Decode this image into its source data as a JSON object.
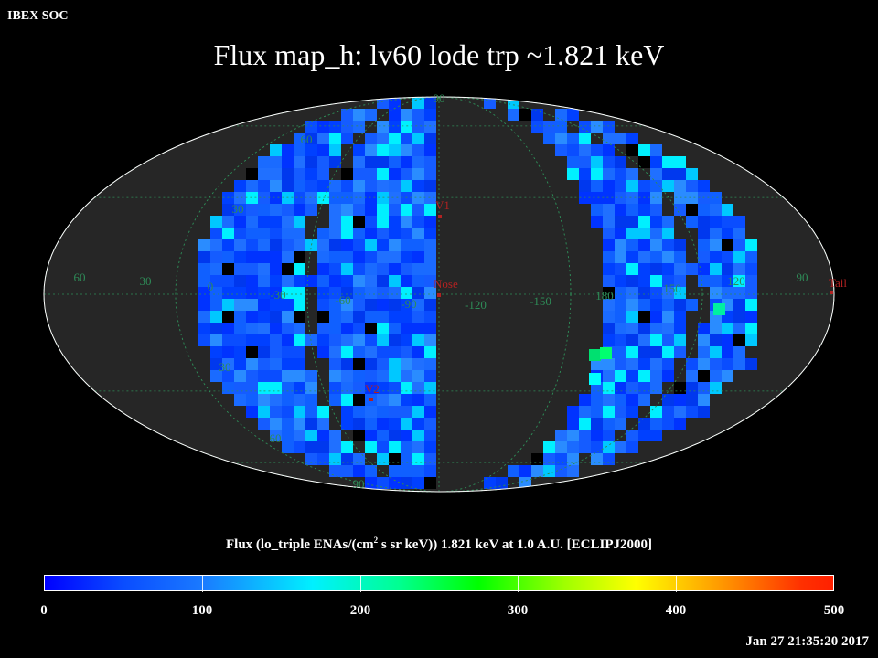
{
  "header": {
    "soc_label": "IBEX SOC",
    "title": "Flux   map_h: lv60 lode trp ~1.821 keV"
  },
  "map": {
    "projection": "Mollweide",
    "colors": {
      "background": "#000000",
      "sphere_fill": "#262626",
      "outline": "#ffffff",
      "grid": "#2e8b57",
      "grid_label": "#2e8b57",
      "marker": "#b22222"
    },
    "lat_labels": [
      "90",
      "60",
      "30",
      "0",
      "30",
      "60",
      "90"
    ],
    "lon_labels": [
      "60",
      "30",
      "0",
      "-30",
      "-60",
      "-90",
      "-120",
      "-150",
      "180",
      "150",
      "120",
      "90"
    ],
    "markers": [
      {
        "label": "V1",
        "lat": 32,
        "lon": 0
      },
      {
        "label": "Nose",
        "lat": 5,
        "lon": 0
      },
      {
        "label": "V2",
        "lat": -32,
        "lon": 44
      },
      {
        "label": "Tail",
        "lat": 5,
        "lon": 180
      }
    ]
  },
  "colorbar": {
    "label_parts": {
      "pre": "Flux (lo_triple ENAs/(cm",
      "sup": "2",
      "post": " s sr keV))  1.821 keV at 1.0 A.U. [ECLIPJ2000]"
    },
    "min": 0,
    "max": 500,
    "tick_labels": [
      "0",
      "100",
      "200",
      "300",
      "400",
      "500"
    ],
    "colors": [
      "#0000ff",
      "#1a7aff",
      "#00f0ff",
      "#00ff00",
      "#ffff00",
      "#ff3000"
    ]
  },
  "footer": {
    "timestamp": "Jan 27 21:35:20 2017"
  }
}
